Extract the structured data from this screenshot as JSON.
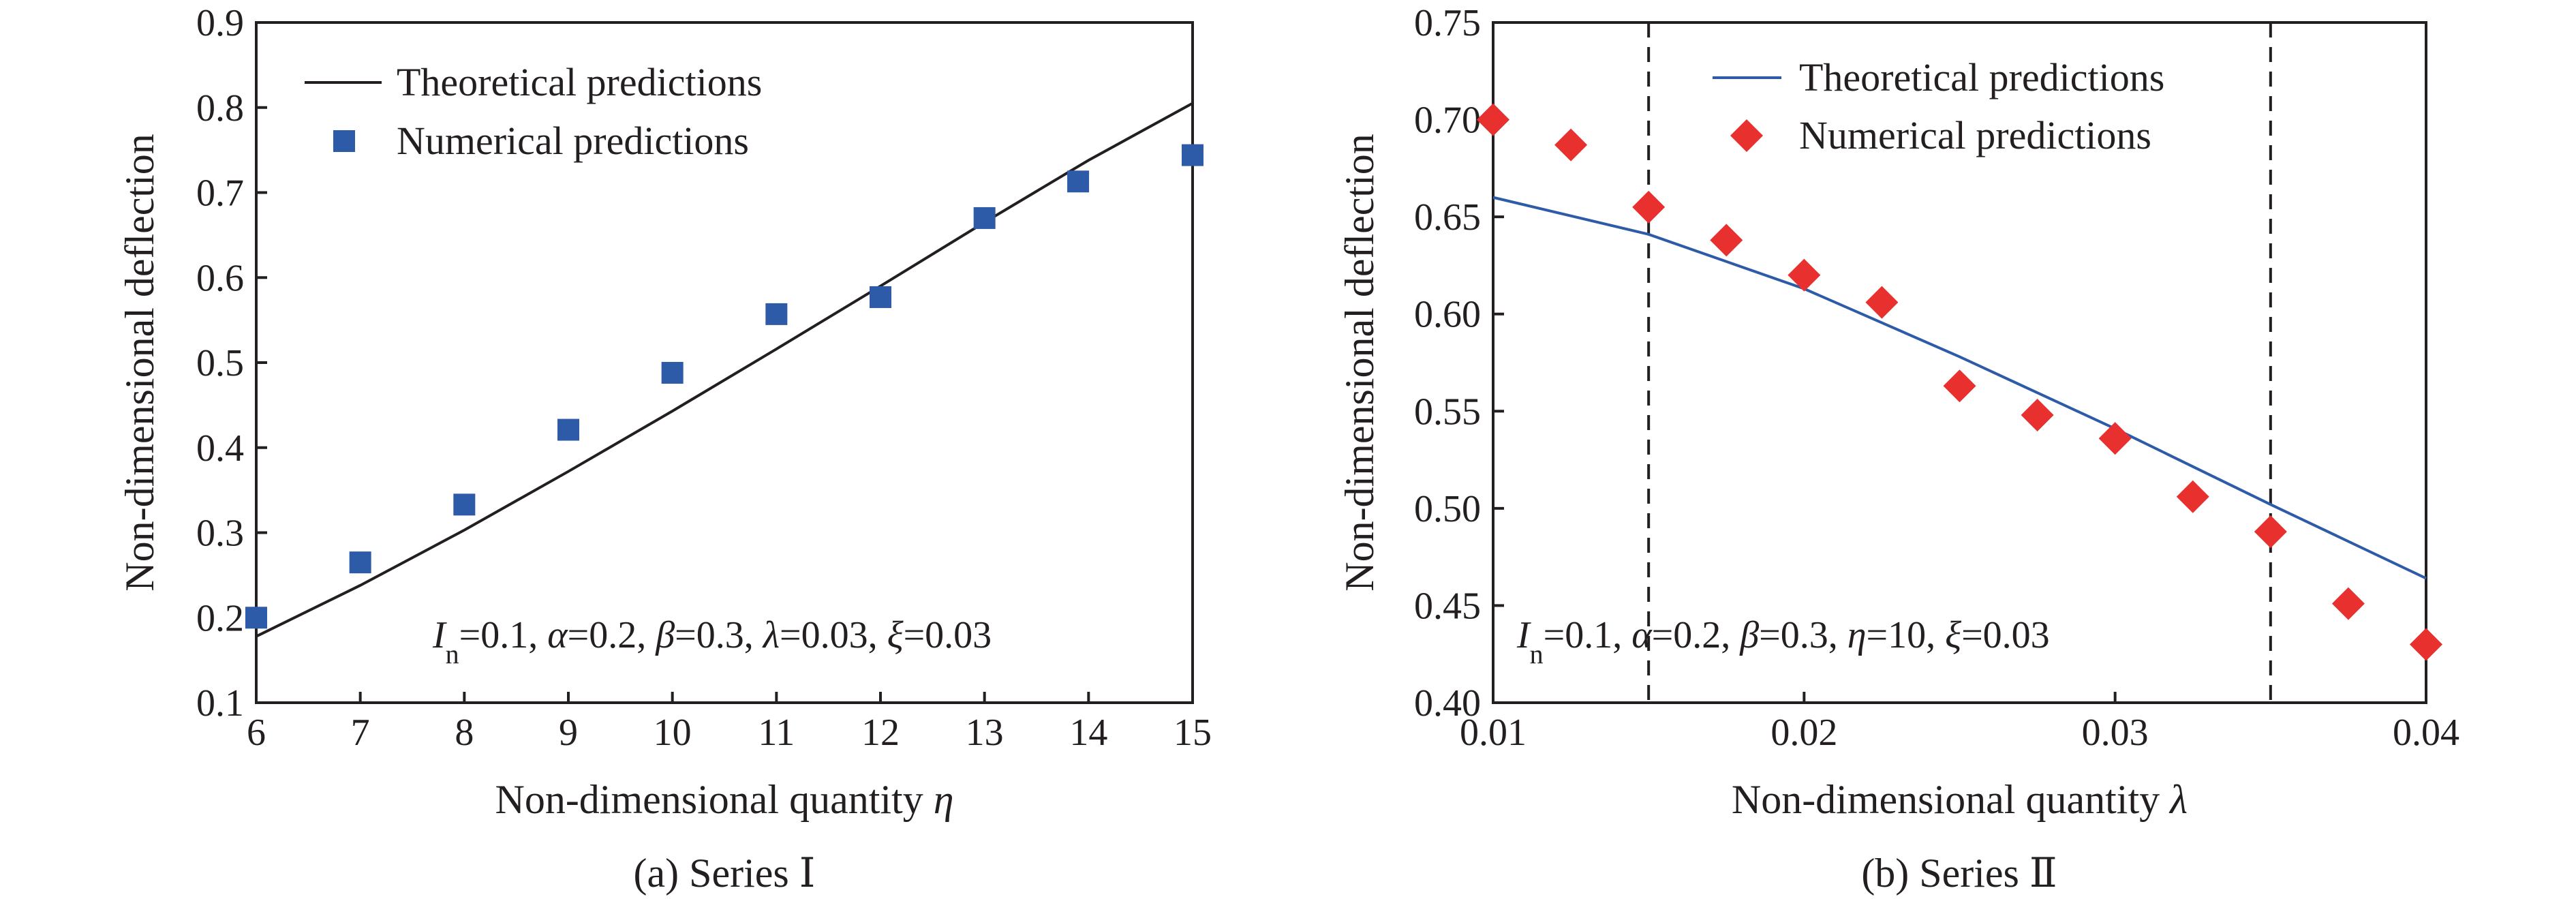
{
  "chart_data": [
    {
      "type": "line",
      "caption": "(a) Series Ⅰ",
      "xlabel": "Non-dimensional quantity η",
      "ylabel": "Non-dimensional deflection",
      "xlim": [
        6,
        15
      ],
      "ylim": [
        0.1,
        0.9
      ],
      "x_ticks": [
        "6",
        "7",
        "8",
        "9",
        "10",
        "11",
        "12",
        "13",
        "14",
        "15"
      ],
      "y_ticks": [
        "0.1",
        "0.2",
        "0.3",
        "0.4",
        "0.5",
        "0.6",
        "0.7",
        "0.8",
        "0.9"
      ],
      "legend_position": "top-left",
      "annotation": "In=0.1, α=0.2, β=0.3, λ=0.03, ξ=0.03",
      "series": [
        {
          "name": "Theoretical predictions",
          "kind": "line",
          "color": "#231f20",
          "x": [
            6,
            7,
            8,
            9,
            10,
            11,
            12,
            13,
            14,
            15
          ],
          "y": [
            0.178,
            0.238,
            0.303,
            0.372,
            0.443,
            0.516,
            0.59,
            0.665,
            0.738,
            0.805
          ]
        },
        {
          "name": "Numerical predictions",
          "kind": "scatter",
          "marker": "square",
          "color": "#2e5ba8",
          "x": [
            6,
            7,
            8,
            9,
            10,
            11,
            12,
            13,
            13.9,
            15
          ],
          "y": [
            0.2,
            0.265,
            0.333,
            0.421,
            0.488,
            0.557,
            0.577,
            0.67,
            0.713,
            0.744
          ]
        }
      ]
    },
    {
      "type": "line",
      "caption": "(b) Series Ⅱ",
      "xlabel": "Non-dimensional quantity λ",
      "ylabel": "Non-dimensional deflection",
      "xlim": [
        0.01,
        0.04
      ],
      "ylim": [
        0.4,
        0.75
      ],
      "x_ticks": [
        "0.01",
        "0.02",
        "0.03",
        "0.04"
      ],
      "y_ticks": [
        "0.40",
        "0.45",
        "0.50",
        "0.55",
        "0.60",
        "0.65",
        "0.70",
        "0.75"
      ],
      "reference_lines_x": [
        0.015,
        0.035
      ],
      "legend_position": "top-center",
      "annotation": "In=0.1, α=0.2, β=0.3, η=10, ξ=0.03",
      "series": [
        {
          "name": "Theoretical predictions",
          "kind": "line",
          "color": "#2e5ba8",
          "x": [
            0.01,
            0.015,
            0.02,
            0.025,
            0.03,
            0.035,
            0.04
          ],
          "y": [
            0.66,
            0.641,
            0.613,
            0.578,
            0.541,
            0.502,
            0.464
          ]
        },
        {
          "name": "Numerical predictions",
          "kind": "scatter",
          "marker": "diamond",
          "color": "#e8302f",
          "x": [
            0.01,
            0.0125,
            0.015,
            0.0175,
            0.02,
            0.0225,
            0.025,
            0.0275,
            0.03,
            0.0325,
            0.035,
            0.0375,
            0.04
          ],
          "y": [
            0.7,
            0.687,
            0.655,
            0.638,
            0.62,
            0.606,
            0.563,
            0.548,
            0.536,
            0.506,
            0.488,
            0.451,
            0.43
          ]
        }
      ]
    }
  ]
}
